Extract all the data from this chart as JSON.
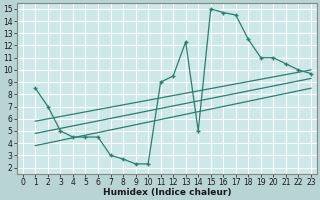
{
  "xlabel": "Humidex (Indice chaleur)",
  "xlim": [
    -0.5,
    23.5
  ],
  "ylim": [
    1.5,
    15.5
  ],
  "xticks": [
    0,
    1,
    2,
    3,
    4,
    5,
    6,
    7,
    8,
    9,
    10,
    11,
    12,
    13,
    14,
    15,
    16,
    17,
    18,
    19,
    20,
    21,
    22,
    23
  ],
  "yticks": [
    2,
    3,
    4,
    5,
    6,
    7,
    8,
    9,
    10,
    11,
    12,
    13,
    14,
    15
  ],
  "bg_color": "#cce8e8",
  "plot_bg": "#cce8e8",
  "line_color": "#2d7d70",
  "grid_color": "#ffffff",
  "line1_x": [
    1,
    2,
    3,
    4,
    5,
    6,
    7,
    8,
    9,
    10,
    11,
    12,
    13,
    14,
    15,
    16,
    17,
    18,
    19,
    20,
    21,
    22,
    23
  ],
  "line1_y": [
    8.5,
    7.0,
    5.0,
    4.5,
    4.5,
    4.5,
    3.0,
    2.7,
    2.3,
    2.3,
    9.0,
    9.5,
    12.3,
    5.0,
    15.0,
    14.7,
    14.5,
    12.5,
    11.0,
    11.0,
    10.5,
    10.0,
    9.7
  ],
  "line2_x": [
    1,
    23
  ],
  "line2_y": [
    5.8,
    10.0
  ],
  "line3_x": [
    1,
    23
  ],
  "line3_y": [
    4.8,
    9.3
  ],
  "line4_x": [
    1,
    23
  ],
  "line4_y": [
    3.8,
    8.5
  ],
  "tick_fontsize": 5.5,
  "xlabel_fontsize": 6.5
}
